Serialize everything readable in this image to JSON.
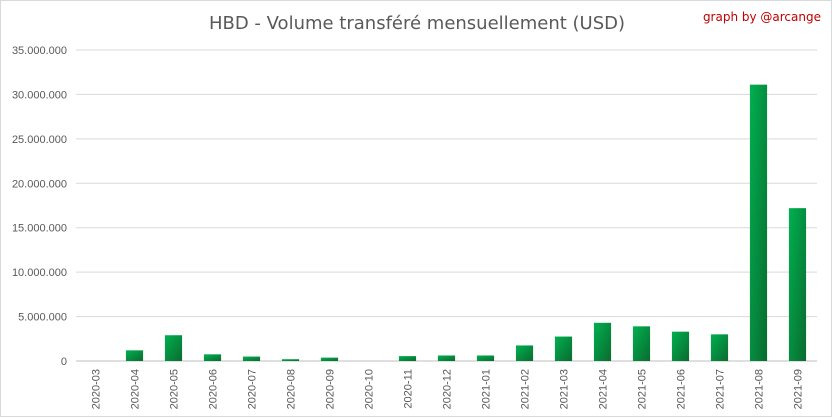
{
  "chart_data": {
    "type": "bar",
    "title": "HBD - Volume transféré mensuellement (USD)",
    "credit": "graph by @arcange",
    "xlabel": "",
    "ylabel": "",
    "ylim": [
      0,
      35000000
    ],
    "y_ticks": [
      0,
      5000000,
      10000000,
      15000000,
      20000000,
      25000000,
      30000000,
      35000000
    ],
    "y_tick_labels": [
      "0",
      "5.000.000",
      "10.000.000",
      "15.000.000",
      "20.000.000",
      "25.000.000",
      "30.000.000",
      "35.000.000"
    ],
    "grid": true,
    "legend": "none",
    "bar_color_light": "#00b050",
    "bar_color_dark": "#0a6b2f",
    "categories": [
      "2020-03",
      "2020-04",
      "2020-05",
      "2020-06",
      "2020-07",
      "2020-08",
      "2020-09",
      "2020-10",
      "2020-11",
      "2020-12",
      "2021-01",
      "2021-02",
      "2021-03",
      "2021-04",
      "2021-05",
      "2021-06",
      "2021-07",
      "2021-08",
      "2021-09"
    ],
    "values": [
      0,
      1200000,
      2900000,
      750000,
      500000,
      200000,
      380000,
      0,
      550000,
      620000,
      620000,
      1750000,
      2750000,
      4300000,
      3900000,
      3300000,
      3000000,
      31100000,
      17200000
    ]
  }
}
